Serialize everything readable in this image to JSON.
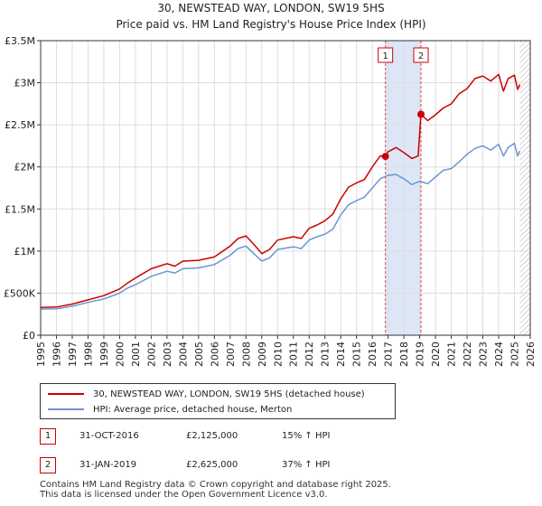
{
  "title_line1": "30, NEWSTEAD WAY, LONDON, SW19 5HS",
  "title_line2": "Price paid vs. HM Land Registry's House Price Index (HPI)",
  "colors": {
    "property": "#cc0000",
    "hpi": "#6a95cf",
    "band": "#dde6f7",
    "marker": "#cc0000"
  },
  "chart_data": {
    "type": "line",
    "title": "30, NEWSTEAD WAY, LONDON, SW19 5HS — Price paid vs. HM Land Registry's House Price Index (HPI)",
    "xlabel": "",
    "ylabel": "",
    "xlim": [
      1995,
      2026
    ],
    "ylim": [
      0,
      3500000
    ],
    "grid": true,
    "x_ticks": [
      "1995",
      "1996",
      "1997",
      "1998",
      "1999",
      "2000",
      "2001",
      "2002",
      "2003",
      "2004",
      "2005",
      "2006",
      "2007",
      "2008",
      "2009",
      "2010",
      "2011",
      "2012",
      "2013",
      "2014",
      "2015",
      "2016",
      "2017",
      "2018",
      "2019",
      "2020",
      "2021",
      "2022",
      "2023",
      "2024",
      "2025",
      "2026"
    ],
    "y_ticks": [
      {
        "value": 0,
        "label": "£0"
      },
      {
        "value": 500000,
        "label": "£500K"
      },
      {
        "value": 1000000,
        "label": "£1M"
      },
      {
        "value": 1500000,
        "label": "£1.5M"
      },
      {
        "value": 2000000,
        "label": "£2M"
      },
      {
        "value": 2500000,
        "label": "£2.5M"
      },
      {
        "value": 3000000,
        "label": "£3M"
      },
      {
        "value": 3500000,
        "label": "£3.5M"
      }
    ],
    "series": [
      {
        "name": "30, NEWSTEAD WAY, LONDON, SW19 5HS (detached house)",
        "color": "#cc0000",
        "points": [
          [
            1995.0,
            330000
          ],
          [
            1996.0,
            335000
          ],
          [
            1997.0,
            370000
          ],
          [
            1998.0,
            420000
          ],
          [
            1999.0,
            470000
          ],
          [
            2000.0,
            550000
          ],
          [
            2000.5,
            620000
          ],
          [
            2001.0,
            680000
          ],
          [
            2002.0,
            790000
          ],
          [
            2003.0,
            850000
          ],
          [
            2003.5,
            820000
          ],
          [
            2004.0,
            880000
          ],
          [
            2005.0,
            890000
          ],
          [
            2006.0,
            930000
          ],
          [
            2007.0,
            1060000
          ],
          [
            2007.5,
            1150000
          ],
          [
            2008.0,
            1180000
          ],
          [
            2008.5,
            1080000
          ],
          [
            2009.0,
            970000
          ],
          [
            2009.5,
            1020000
          ],
          [
            2010.0,
            1130000
          ],
          [
            2011.0,
            1170000
          ],
          [
            2011.5,
            1150000
          ],
          [
            2012.0,
            1270000
          ],
          [
            2012.5,
            1310000
          ],
          [
            2013.0,
            1360000
          ],
          [
            2013.5,
            1440000
          ],
          [
            2014.0,
            1620000
          ],
          [
            2014.5,
            1760000
          ],
          [
            2015.0,
            1810000
          ],
          [
            2015.5,
            1850000
          ],
          [
            2016.0,
            2000000
          ],
          [
            2016.5,
            2130000
          ],
          [
            2016.83,
            2125000
          ],
          [
            2017.0,
            2180000
          ],
          [
            2017.5,
            2230000
          ],
          [
            2018.0,
            2170000
          ],
          [
            2018.5,
            2100000
          ],
          [
            2018.9,
            2130000
          ],
          [
            2019.08,
            2625000
          ],
          [
            2019.5,
            2550000
          ],
          [
            2020.0,
            2620000
          ],
          [
            2020.5,
            2700000
          ],
          [
            2021.0,
            2750000
          ],
          [
            2021.5,
            2870000
          ],
          [
            2022.0,
            2930000
          ],
          [
            2022.5,
            3050000
          ],
          [
            2023.0,
            3080000
          ],
          [
            2023.5,
            3020000
          ],
          [
            2024.0,
            3100000
          ],
          [
            2024.3,
            2900000
          ],
          [
            2024.6,
            3050000
          ],
          [
            2025.0,
            3090000
          ],
          [
            2025.2,
            2920000
          ],
          [
            2025.35,
            2980000
          ]
        ]
      },
      {
        "name": "HPI: Average price, detached house, Merton",
        "color": "#6a95cf",
        "points": [
          [
            1995.0,
            310000
          ],
          [
            1996.0,
            315000
          ],
          [
            1997.0,
            345000
          ],
          [
            1998.0,
            390000
          ],
          [
            1999.0,
            430000
          ],
          [
            2000.0,
            500000
          ],
          [
            2000.5,
            560000
          ],
          [
            2001.0,
            600000
          ],
          [
            2002.0,
            700000
          ],
          [
            2003.0,
            760000
          ],
          [
            2003.5,
            740000
          ],
          [
            2004.0,
            790000
          ],
          [
            2005.0,
            800000
          ],
          [
            2006.0,
            840000
          ],
          [
            2007.0,
            950000
          ],
          [
            2007.5,
            1030000
          ],
          [
            2008.0,
            1060000
          ],
          [
            2008.5,
            970000
          ],
          [
            2009.0,
            880000
          ],
          [
            2009.5,
            920000
          ],
          [
            2010.0,
            1020000
          ],
          [
            2011.0,
            1050000
          ],
          [
            2011.5,
            1030000
          ],
          [
            2012.0,
            1130000
          ],
          [
            2012.5,
            1170000
          ],
          [
            2013.0,
            1200000
          ],
          [
            2013.5,
            1260000
          ],
          [
            2014.0,
            1430000
          ],
          [
            2014.5,
            1550000
          ],
          [
            2015.0,
            1600000
          ],
          [
            2015.5,
            1640000
          ],
          [
            2016.0,
            1750000
          ],
          [
            2016.5,
            1860000
          ],
          [
            2017.0,
            1900000
          ],
          [
            2017.5,
            1910000
          ],
          [
            2018.0,
            1860000
          ],
          [
            2018.5,
            1790000
          ],
          [
            2019.0,
            1830000
          ],
          [
            2019.5,
            1800000
          ],
          [
            2020.0,
            1880000
          ],
          [
            2020.5,
            1960000
          ],
          [
            2021.0,
            1980000
          ],
          [
            2021.5,
            2060000
          ],
          [
            2022.0,
            2150000
          ],
          [
            2022.5,
            2220000
          ],
          [
            2023.0,
            2250000
          ],
          [
            2023.5,
            2200000
          ],
          [
            2024.0,
            2270000
          ],
          [
            2024.3,
            2130000
          ],
          [
            2024.6,
            2230000
          ],
          [
            2025.0,
            2280000
          ],
          [
            2025.2,
            2130000
          ],
          [
            2025.35,
            2190000
          ]
        ]
      }
    ],
    "annotations": [
      {
        "label": "1",
        "x": 2016.83,
        "y": 2125000
      },
      {
        "label": "2",
        "x": 2019.08,
        "y": 2625000
      }
    ],
    "highlight_band": [
      2016.83,
      2019.08
    ],
    "forecast_start": 2025.35
  },
  "legend": {
    "property_label": "30, NEWSTEAD WAY, LONDON, SW19 5HS (detached house)",
    "hpi_label": "HPI: Average price, detached house, Merton"
  },
  "sales": [
    {
      "num": "1",
      "date": "31-OCT-2016",
      "price": "£2,125,000",
      "hpi": "15% ↑ HPI"
    },
    {
      "num": "2",
      "date": "31-JAN-2019",
      "price": "£2,625,000",
      "hpi": "37% ↑ HPI"
    }
  ],
  "footer_line1": "Contains HM Land Registry data © Crown copyright and database right 2025.",
  "footer_line2": "This data is licensed under the Open Government Licence v3.0."
}
